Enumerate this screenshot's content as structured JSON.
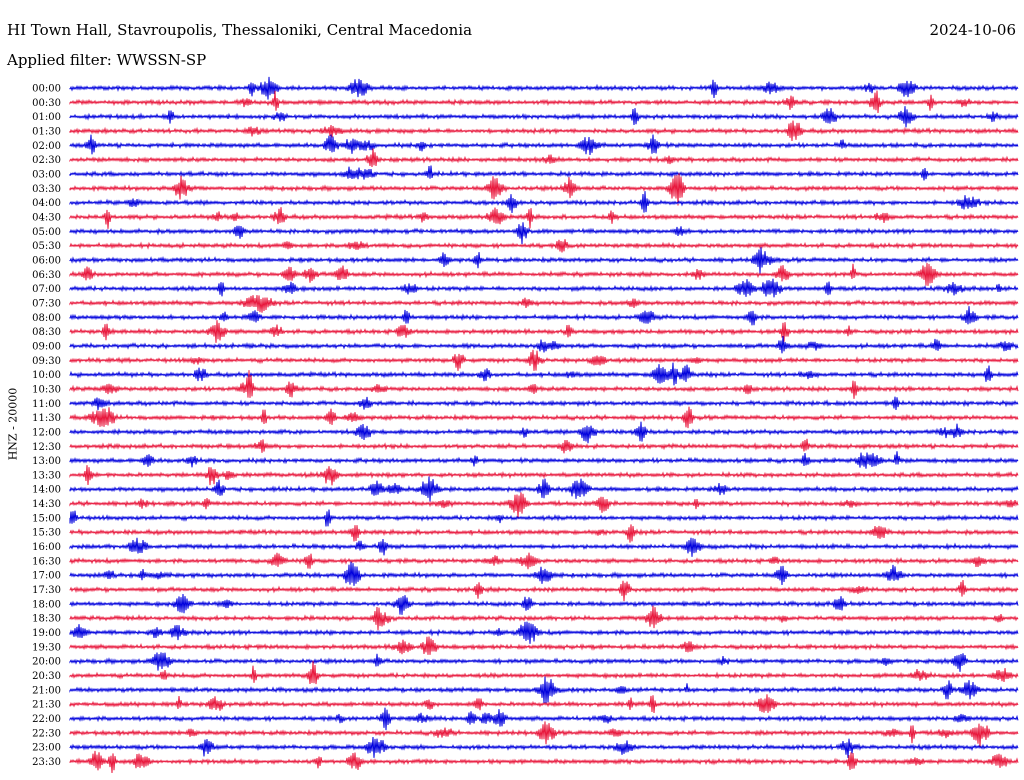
{
  "header": {
    "station": "HI Town Hall, Stavroupolis, Thessaloniki, Central Macedonia",
    "date": "2024-10-06",
    "filter": "Applied filter: WWSSN-SP"
  },
  "channel_label": "HNZ - 20000",
  "colors": {
    "trace_a": "#0000dd",
    "trace_b": "#e8173c",
    "text": "#000000",
    "background": "#ffffff"
  },
  "chart_data": {
    "type": "line",
    "subtype": "helicorder",
    "ylabel": "HNZ - 20000",
    "row_interval_minutes": 30,
    "row_labels": [
      "00:00",
      "00:30",
      "01:00",
      "01:30",
      "02:00",
      "02:30",
      "03:00",
      "03:30",
      "04:00",
      "04:30",
      "05:00",
      "05:30",
      "06:00",
      "06:30",
      "07:00",
      "07:30",
      "08:00",
      "08:30",
      "09:00",
      "09:30",
      "10:00",
      "10:30",
      "11:00",
      "11:30",
      "12:00",
      "12:30",
      "13:00",
      "13:30",
      "14:00",
      "14:30",
      "15:00",
      "15:30",
      "16:00",
      "16:30",
      "17:00",
      "17:30",
      "18:00",
      "18:30",
      "19:00",
      "19:30",
      "20:00",
      "20:30",
      "21:00",
      "21:30",
      "22:00",
      "22:30",
      "23:00",
      "23:30"
    ],
    "row_colors": [
      "trace_a",
      "trace_b"
    ],
    "legend": "none",
    "grid": false
  }
}
